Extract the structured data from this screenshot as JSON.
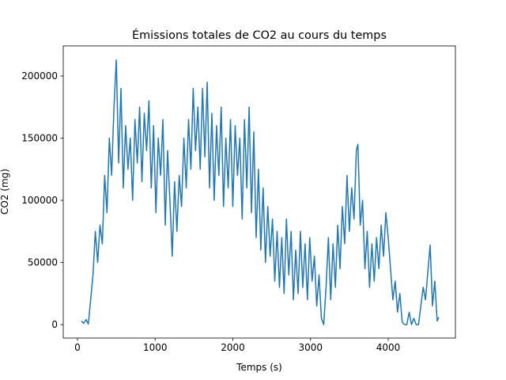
{
  "chart_data": {
    "type": "line",
    "title": "Émissions totales de CO2 au cours du temps",
    "xlabel": "Temps (s)",
    "ylabel": "CO2 (mg)",
    "xlim": [
      -183,
      4865
    ],
    "ylim": [
      -10800,
      224200
    ],
    "xticks": [
      0,
      1000,
      2000,
      3000,
      4000
    ],
    "yticks": [
      0,
      50000,
      100000,
      150000,
      200000
    ],
    "grid": false,
    "series": [
      {
        "name": "CO2",
        "color": "#1f77b4",
        "x": [
          50,
          80,
          110,
          140,
          170,
          200,
          230,
          260,
          290,
          320,
          350,
          380,
          410,
          440,
          470,
          500,
          530,
          560,
          590,
          620,
          650,
          680,
          710,
          740,
          770,
          800,
          830,
          860,
          890,
          920,
          950,
          980,
          1010,
          1040,
          1070,
          1100,
          1130,
          1160,
          1190,
          1220,
          1250,
          1280,
          1310,
          1340,
          1370,
          1400,
          1430,
          1460,
          1490,
          1520,
          1550,
          1580,
          1610,
          1640,
          1670,
          1700,
          1730,
          1760,
          1790,
          1820,
          1850,
          1880,
          1910,
          1940,
          1970,
          2000,
          2030,
          2060,
          2090,
          2120,
          2150,
          2180,
          2210,
          2240,
          2270,
          2300,
          2330,
          2360,
          2390,
          2420,
          2450,
          2480,
          2510,
          2540,
          2570,
          2600,
          2630,
          2660,
          2690,
          2720,
          2750,
          2780,
          2810,
          2840,
          2870,
          2900,
          2930,
          2960,
          2990,
          3020,
          3050,
          3080,
          3110,
          3140,
          3170,
          3200,
          3230,
          3260,
          3290,
          3320,
          3350,
          3380,
          3410,
          3440,
          3470,
          3500,
          3530,
          3560,
          3590,
          3610,
          3640,
          3670,
          3700,
          3730,
          3760,
          3790,
          3820,
          3850,
          3880,
          3910,
          3940,
          3970,
          4000,
          4030,
          4060,
          4090,
          4120,
          4150,
          4180,
          4210,
          4240,
          4270,
          4300,
          4330,
          4360,
          4390,
          4420,
          4450,
          4480,
          4510,
          4540,
          4570,
          4600,
          4630,
          4650
        ],
        "values": [
          3000,
          1000,
          4000,
          500,
          20000,
          40000,
          75000,
          50000,
          80000,
          65000,
          120000,
          90000,
          150000,
          120000,
          175000,
          213000,
          130000,
          190000,
          110000,
          160000,
          125000,
          150000,
          100000,
          165000,
          130000,
          175000,
          115000,
          170000,
          140000,
          180000,
          110000,
          160000,
          90000,
          150000,
          120000,
          165000,
          80000,
          140000,
          100000,
          55000,
          115000,
          75000,
          120000,
          95000,
          150000,
          110000,
          165000,
          125000,
          190000,
          140000,
          175000,
          125000,
          190000,
          135000,
          195000,
          110000,
          170000,
          100000,
          160000,
          120000,
          175000,
          95000,
          150000,
          110000,
          165000,
          95000,
          160000,
          120000,
          150000,
          85000,
          165000,
          110000,
          175000,
          90000,
          155000,
          70000,
          125000,
          60000,
          110000,
          50000,
          95000,
          55000,
          85000,
          35000,
          75000,
          30000,
          70000,
          25000,
          85000,
          40000,
          75000,
          20000,
          60000,
          25000,
          75000,
          30000,
          65000,
          20000,
          70000,
          35000,
          55000,
          15000,
          40000,
          5000,
          0,
          30000,
          70000,
          20000,
          65000,
          30000,
          80000,
          45000,
          95000,
          65000,
          120000,
          75000,
          110000,
          85000,
          140000,
          145000,
          80000,
          100000,
          45000,
          75000,
          30000,
          65000,
          35000,
          70000,
          45000,
          80000,
          55000,
          90000,
          70000,
          45000,
          20000,
          35000,
          10000,
          25000,
          2000,
          0,
          0,
          10000,
          0,
          5000,
          0,
          0,
          15000,
          30000,
          20000,
          42000,
          64000,
          15000,
          35000,
          3000,
          6000
        ]
      }
    ]
  }
}
